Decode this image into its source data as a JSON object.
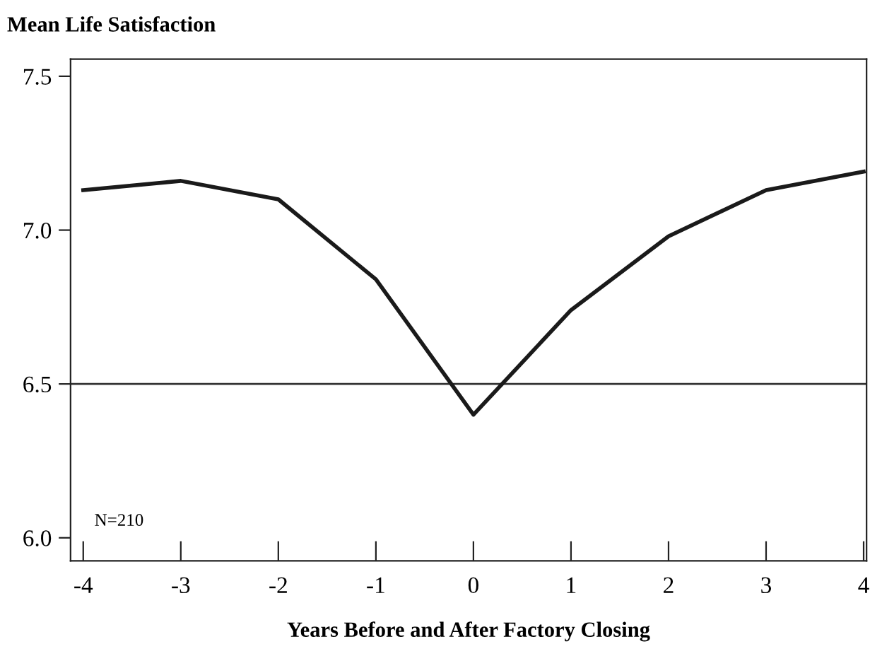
{
  "chart_data": {
    "type": "line",
    "title": "Mean Life Satisfaction",
    "xlabel": "Years Before and After Factory Closing",
    "x": [
      -4,
      -3,
      -2,
      -1,
      0,
      1,
      2,
      3,
      4
    ],
    "series": [
      {
        "color": "#1a1a1a",
        "values": [
          7.13,
          7.16,
          7.1,
          6.84,
          6.4,
          6.74,
          6.98,
          7.13,
          7.19
        ]
      }
    ],
    "xlim": [
      -4.13,
      4.03
    ],
    "ylim": [
      5.925,
      7.556
    ],
    "xticks": [
      -4,
      -3,
      -2,
      -1,
      0,
      1,
      2,
      3,
      4
    ],
    "yticks": [
      {
        "value": 6.0,
        "label": "6.0"
      },
      {
        "value": 6.5,
        "label": "6.5"
      },
      {
        "value": 7.0,
        "label": "7.0"
      },
      {
        "value": 7.5,
        "label": "7.5"
      }
    ],
    "ref_lines": [
      {
        "axis": "y",
        "value": 6.5,
        "color": "#333333"
      }
    ],
    "annotations": [
      "N=210"
    ],
    "grid": false,
    "legend": false,
    "marker": "none",
    "line_style": "solid"
  }
}
